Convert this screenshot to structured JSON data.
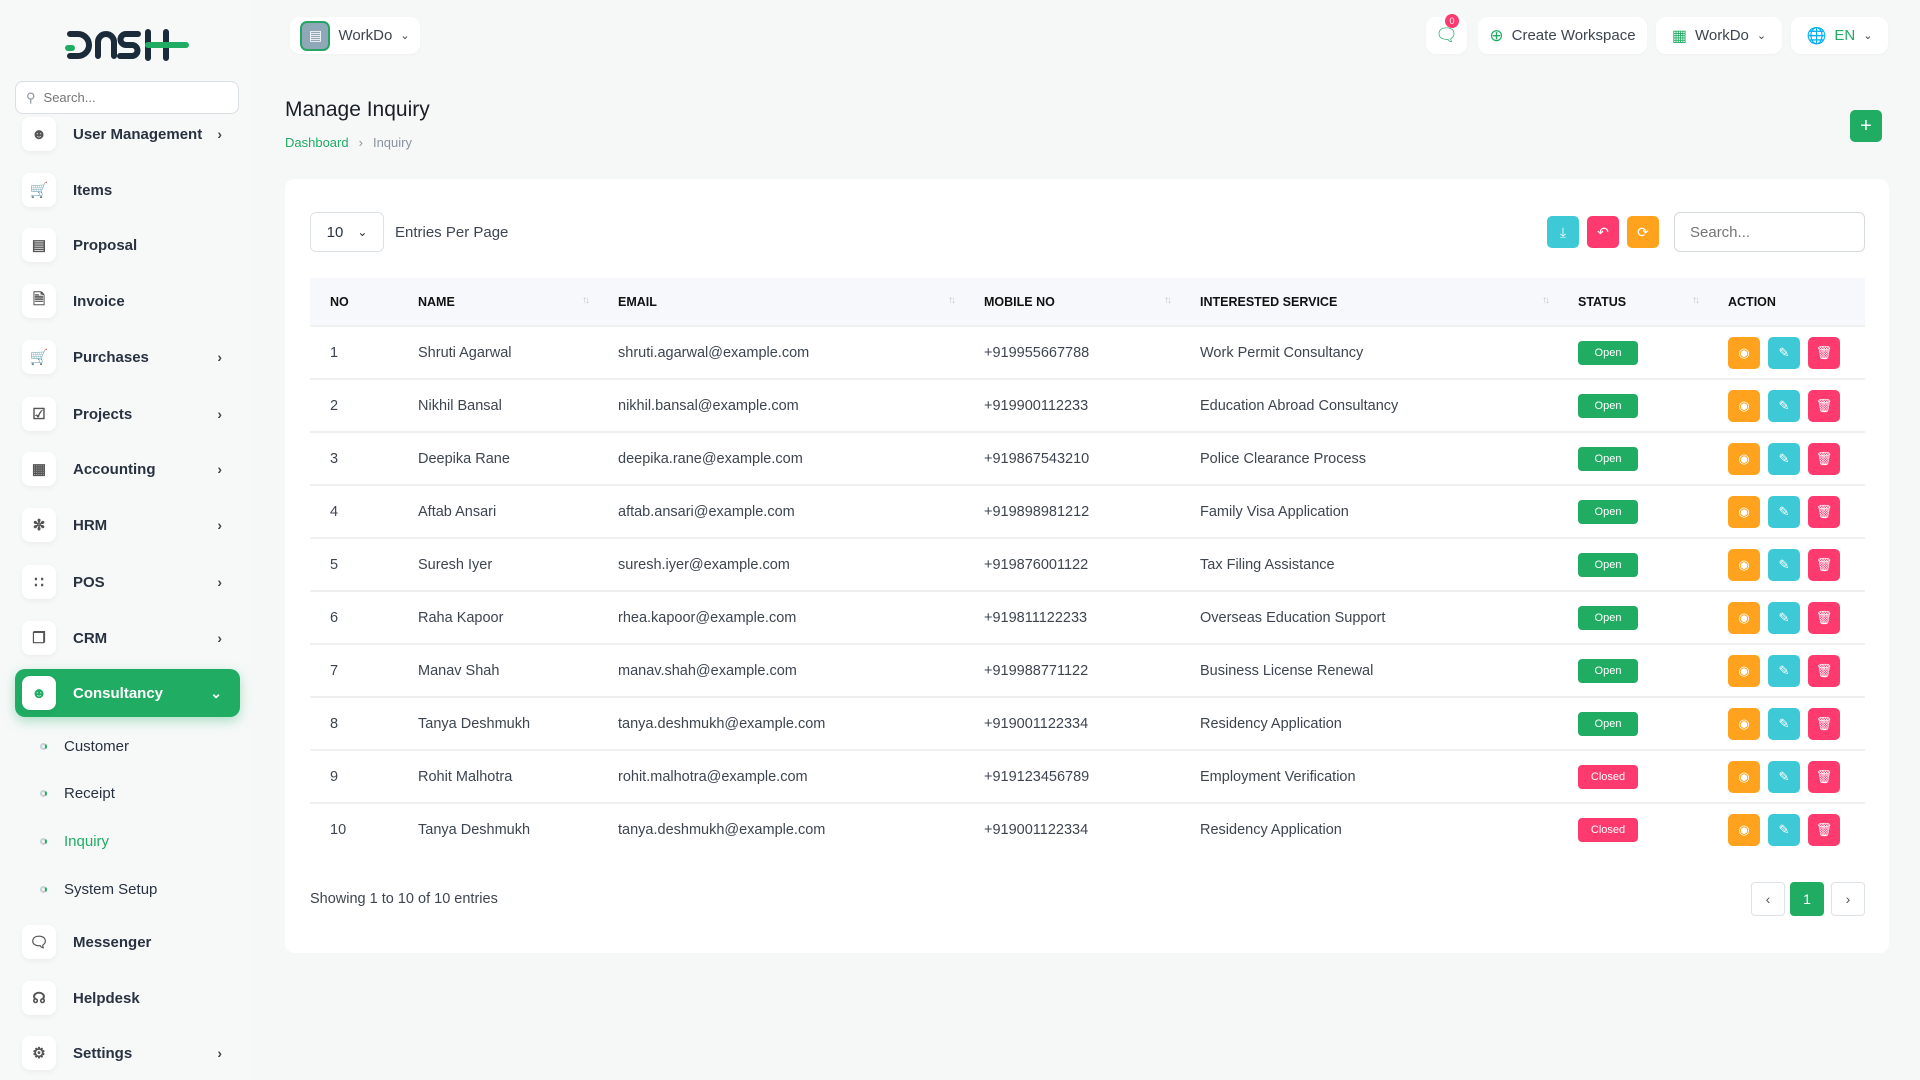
{
  "brand": {
    "logo_text": "DASH"
  },
  "colors": {
    "primary": "#20ac63",
    "info": "#3ec9d6",
    "danger": "#ff3a6e",
    "warning": "#ffa21d"
  },
  "sidebar": {
    "search_placeholder": "Search...",
    "items": [
      {
        "label": "User Management",
        "icon": "users-icon",
        "chevron": true
      },
      {
        "label": "Items",
        "icon": "cart-icon",
        "chevron": false
      },
      {
        "label": "Proposal",
        "icon": "proposal-icon",
        "chevron": false
      },
      {
        "label": "Invoice",
        "icon": "file-icon",
        "chevron": false
      },
      {
        "label": "Purchases",
        "icon": "cart-icon",
        "chevron": true
      },
      {
        "label": "Projects",
        "icon": "check-square-icon",
        "chevron": true
      },
      {
        "label": "Accounting",
        "icon": "grid-icon",
        "chevron": true
      },
      {
        "label": "HRM",
        "icon": "hrm-icon",
        "chevron": true
      },
      {
        "label": "POS",
        "icon": "dots-grid-icon",
        "chevron": true
      },
      {
        "label": "CRM",
        "icon": "crm-icon",
        "chevron": true
      },
      {
        "label": "Consultancy",
        "icon": "users-icon",
        "chevron": true,
        "active": true
      }
    ],
    "sub_items": [
      {
        "label": "Customer"
      },
      {
        "label": "Receipt"
      },
      {
        "label": "Inquiry",
        "active": true
      },
      {
        "label": "System Setup"
      }
    ],
    "bottom_items": [
      {
        "label": "Messenger",
        "icon": "message-icon",
        "chevron": false
      },
      {
        "label": "Helpdesk",
        "icon": "headset-icon",
        "chevron": false
      },
      {
        "label": "Settings",
        "icon": "gear-icon",
        "chevron": true
      }
    ]
  },
  "header": {
    "workspace": "WorkDo",
    "chat_badge": "0",
    "create_workspace": "Create Workspace",
    "workdo": "WorkDo",
    "language": "EN"
  },
  "page": {
    "title": "Manage Inquiry",
    "breadcrumb": [
      "Dashboard",
      "Inquiry"
    ]
  },
  "table": {
    "entries_value": "10",
    "entries_label": "Entries Per Page",
    "search_placeholder": "Search...",
    "columns": [
      "NO",
      "NAME",
      "EMAIL",
      "MOBILE NO",
      "INTERESTED SERVICE",
      "STATUS",
      "ACTION"
    ],
    "rows": [
      [
        "1",
        "Shruti Agarwal",
        "shruti.agarwal@example.com",
        "+919955667788",
        "Work Permit Consultancy",
        "Open"
      ],
      [
        "2",
        "Nikhil Bansal",
        "nikhil.bansal@example.com",
        "+919900112233",
        "Education Abroad Consultancy",
        "Open"
      ],
      [
        "3",
        "Deepika Rane",
        "deepika.rane@example.com",
        "+919867543210",
        "Police Clearance Process",
        "Open"
      ],
      [
        "4",
        "Aftab Ansari",
        "aftab.ansari@example.com",
        "+919898981212",
        "Family Visa Application",
        "Open"
      ],
      [
        "5",
        "Suresh Iyer",
        "suresh.iyer@example.com",
        "+919876001122",
        "Tax Filing Assistance",
        "Open"
      ],
      [
        "6",
        "Raha Kapoor",
        "rhea.kapoor@example.com",
        "+919811122233",
        "Overseas Education Support",
        "Open"
      ],
      [
        "7",
        "Manav Shah",
        "manav.shah@example.com",
        "+919988771122",
        "Business License Renewal",
        "Open"
      ],
      [
        "8",
        "Tanya Deshmukh",
        "tanya.deshmukh@example.com",
        "+919001122334",
        "Residency Application",
        "Open"
      ],
      [
        "9",
        "Rohit Malhotra",
        "rohit.malhotra@example.com",
        "+919123456789",
        "Employment Verification",
        "Closed"
      ],
      [
        "10",
        "Tanya Deshmukh",
        "tanya.deshmukh@example.com",
        "+919001122334",
        "Residency Application",
        "Closed"
      ]
    ],
    "showing": "Showing 1 to 10 of 10 entries",
    "pagination": {
      "prev": "‹",
      "current": "1",
      "next": "›"
    }
  }
}
